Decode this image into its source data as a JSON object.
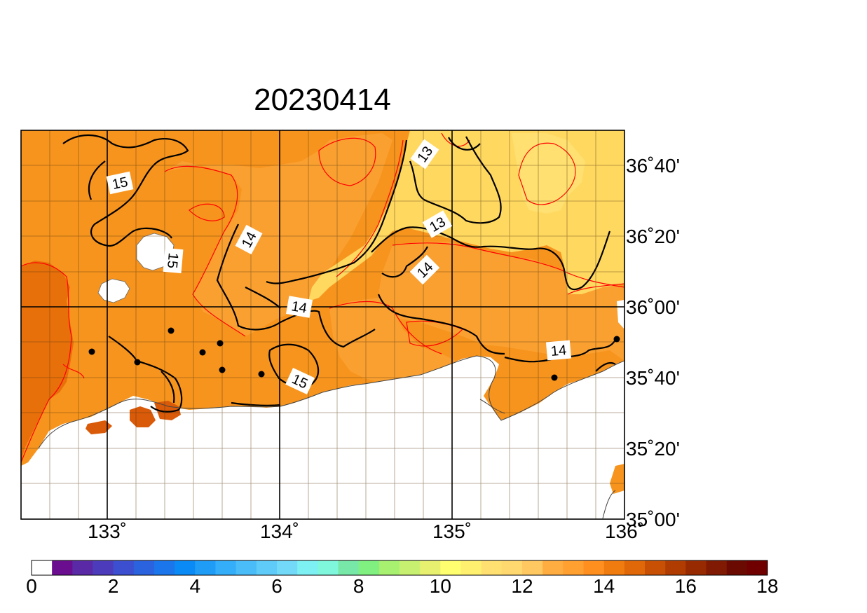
{
  "title": "20230414",
  "map": {
    "lon_ticks": [
      "133˚",
      "134˚",
      "135˚",
      "136˚"
    ],
    "lat_ticks": [
      "36˚40'",
      "36˚20'",
      "36˚00'",
      "35˚40'",
      "35˚20'",
      "35˚00'"
    ],
    "contour_labels": [
      "15",
      "15",
      "14",
      "14",
      "14",
      "13",
      "13",
      "14",
      "15"
    ],
    "colors": {
      "sea": "#ffffff",
      "black_contour": "#000000",
      "red_contour": "#ff0000"
    }
  },
  "colorbar": {
    "min": 0,
    "max": 18,
    "step": 0.5,
    "tick_labels": [
      "0",
      "2",
      "4",
      "6",
      "8",
      "10",
      "12",
      "14",
      "16",
      "18"
    ],
    "colors": [
      "#ffffff",
      "#6a0d8f",
      "#5a2aa6",
      "#4c3cbc",
      "#3b4fd0",
      "#2b62dd",
      "#1a76ea",
      "#0a8af4",
      "#1f9cf6",
      "#34aef8",
      "#4abdf8",
      "#5fcbf8",
      "#73d9f8",
      "#7df0f4",
      "#7ef7dc",
      "#78e8a8",
      "#80f080",
      "#a8f070",
      "#c8f070",
      "#e8f070",
      "#ffff70",
      "#fff070",
      "#ffe070",
      "#ffd870",
      "#ffc860",
      "#ffac40",
      "#ffa030",
      "#ff9020",
      "#f07c10",
      "#e06808",
      "#c85004",
      "#b03c02",
      "#982a02",
      "#801a02",
      "#6a0a00",
      "#700000"
    ]
  }
}
